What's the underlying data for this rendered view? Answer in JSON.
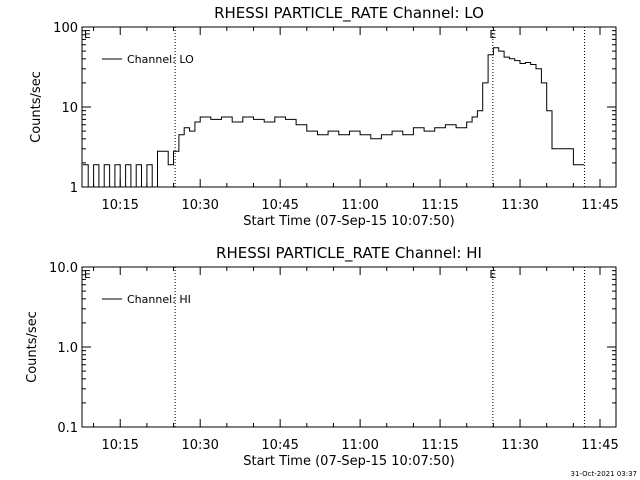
{
  "chart_data": [
    {
      "type": "line",
      "title": "RHESSI PARTICLE_RATE Channel: LO",
      "xlabel": "Start Time (07-Sep-15 10:07:50)",
      "ylabel": "Counts/sec",
      "x_tick_labels": [
        "10:15",
        "10:30",
        "10:45",
        "11:00",
        "11:15",
        "11:30",
        "11:45"
      ],
      "x_tick_minutes": [
        15,
        30,
        45,
        60,
        75,
        90,
        105
      ],
      "x_range_minutes": [
        7.83,
        108
      ],
      "y_scale": "log",
      "y_range": [
        1,
        100
      ],
      "y_tick_labels": [
        "1",
        "10",
        "100"
      ],
      "y_tick_values": [
        1,
        10,
        100
      ],
      "event_markers": [
        {
          "minute": 25.3,
          "label": ""
        },
        {
          "minute": 84.9,
          "label": "E"
        },
        {
          "minute": 102.1,
          "label": ""
        }
      ],
      "corner_marker": "E",
      "series": [
        {
          "name": "Channel: LO",
          "color": "#000000",
          "x": [
            8,
            9,
            10,
            11,
            12,
            13,
            14,
            15,
            16,
            17,
            18,
            19,
            20,
            21,
            22,
            23,
            24,
            25,
            26,
            27,
            28,
            29,
            30,
            32,
            34,
            36,
            38,
            40,
            42,
            44,
            46,
            48,
            50,
            52,
            54,
            56,
            58,
            60,
            62,
            64,
            66,
            68,
            70,
            72,
            74,
            76,
            78,
            80,
            81,
            82,
            83,
            84,
            85,
            86,
            87,
            88,
            89,
            90,
            91,
            92,
            93,
            94,
            95,
            96,
            100,
            102
          ],
          "y": [
            1.9,
            1.0,
            1.9,
            1.0,
            1.9,
            1.0,
            1.9,
            1.0,
            1.9,
            1.0,
            1.9,
            1.0,
            1.9,
            1.0,
            2.8,
            2.8,
            1.9,
            2.8,
            4.5,
            5.5,
            5.0,
            6.5,
            7.5,
            7.0,
            7.5,
            6.5,
            7.5,
            7.0,
            6.5,
            7.5,
            7.0,
            6.0,
            5.0,
            4.5,
            5.0,
            4.5,
            5.0,
            4.5,
            4.0,
            4.5,
            5.0,
            4.5,
            5.5,
            5.0,
            5.5,
            6.0,
            5.5,
            6.5,
            7.5,
            9.0,
            20,
            45,
            55,
            50,
            42,
            40,
            38,
            35,
            36,
            34,
            30,
            20,
            9.0,
            3.0,
            1.9,
            1.9
          ]
        }
      ]
    },
    {
      "type": "line",
      "title": "RHESSI PARTICLE_RATE Channel: HI",
      "xlabel": "Start Time (07-Sep-15 10:07:50)",
      "ylabel": "Counts/sec",
      "x_tick_labels": [
        "10:15",
        "10:30",
        "10:45",
        "11:00",
        "11:15",
        "11:30",
        "11:45"
      ],
      "x_tick_minutes": [
        15,
        30,
        45,
        60,
        75,
        90,
        105
      ],
      "x_range_minutes": [
        7.83,
        108
      ],
      "y_scale": "log",
      "y_range": [
        0.1,
        10
      ],
      "y_tick_labels": [
        "0.1",
        "1.0",
        "10.0"
      ],
      "y_tick_values": [
        0.1,
        1,
        10
      ],
      "event_markers": [
        {
          "minute": 25.3,
          "label": ""
        },
        {
          "minute": 84.9,
          "label": "E"
        },
        {
          "minute": 102.1,
          "label": ""
        }
      ],
      "corner_marker": "E",
      "series": [
        {
          "name": "Channel: HI",
          "color": "#000000",
          "x": [],
          "y": []
        }
      ]
    }
  ],
  "footer": {
    "timestamp": "31-Oct-2021 03:37"
  }
}
